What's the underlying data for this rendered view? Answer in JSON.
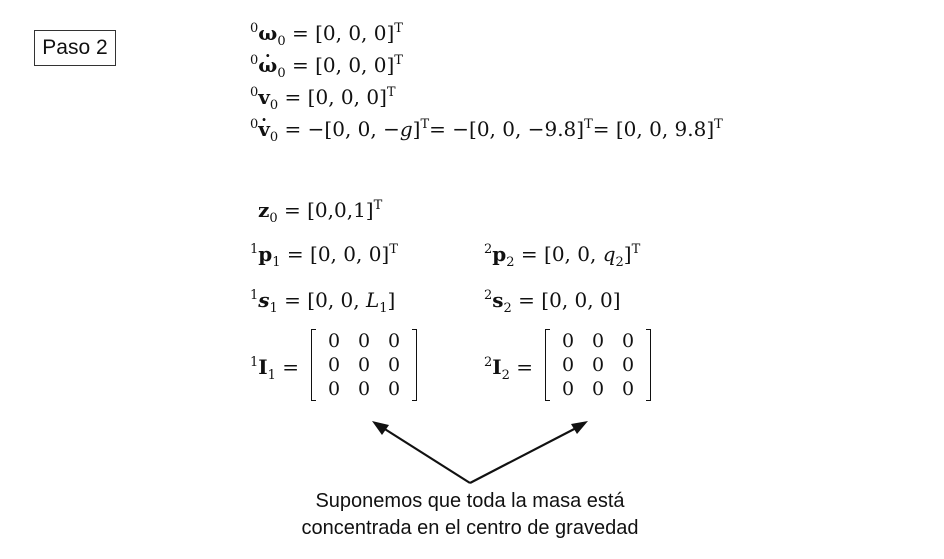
{
  "step": {
    "label": "Paso 2"
  },
  "base": {
    "omega0": {
      "pre": "0",
      "sym": "ω",
      "sub": "0",
      "rhs": " = [0, 0, 0]",
      "sup": "T"
    },
    "omegadot0": {
      "pre": "0",
      "sym": "ω",
      "sub": "0",
      "rhs": " = [0, 0, 0]",
      "sup": "T"
    },
    "v0": {
      "pre": "0",
      "sym": "v",
      "sub": "0",
      "rhs": " = [0, 0, 0]",
      "sup": "T"
    },
    "vdot0": {
      "pre": "0",
      "sym": "v",
      "sub": "0",
      "rhs_a": " = −[0, 0, −",
      "g": "g",
      "rhs_b": "]",
      "rhs_c": "= −[0, 0, −9.8]",
      "rhs_d": "= [0, 0, 9.8]",
      "sup": "T"
    }
  },
  "z0": {
    "sym": "z",
    "sub": "0",
    "rhs": " = [0,0,1]",
    "sup": "T"
  },
  "p1": {
    "pre": "1",
    "sym": "p",
    "sub": "1",
    "rhs": " = [0, 0, 0]",
    "sup": "T"
  },
  "p2": {
    "pre": "2",
    "sym": "p",
    "sub": "2",
    "rhs_a": " = [0, 0, ",
    "q": "q",
    "qsub": "2",
    "rhs_b": "]",
    "sup": "T"
  },
  "s1": {
    "pre": "1",
    "sym": "s",
    "sub": "1",
    "rhs_a": " = [0, 0, ",
    "L": "L",
    "Lsub": "1",
    "rhs_b": "]"
  },
  "s2": {
    "pre": "2",
    "sym": "s",
    "sub": "2",
    "rhs": " = [0, 0, 0]"
  },
  "I1": {
    "pre": "1",
    "sym": "I",
    "sub": "1",
    "eq": " =",
    "rows": [
      [
        "0",
        "0",
        "0"
      ],
      [
        "0",
        "0",
        "0"
      ],
      [
        "0",
        "0",
        "0"
      ]
    ]
  },
  "I2": {
    "pre": "2",
    "sym": "I",
    "sub": "2",
    "eq": " =",
    "rows": [
      [
        "0",
        "0",
        "0"
      ],
      [
        "0",
        "0",
        "0"
      ],
      [
        "0",
        "0",
        "0"
      ]
    ]
  },
  "note": {
    "line1": "Suponemos que toda la masa está",
    "line2": "concentrada en el centro de gravedad"
  }
}
